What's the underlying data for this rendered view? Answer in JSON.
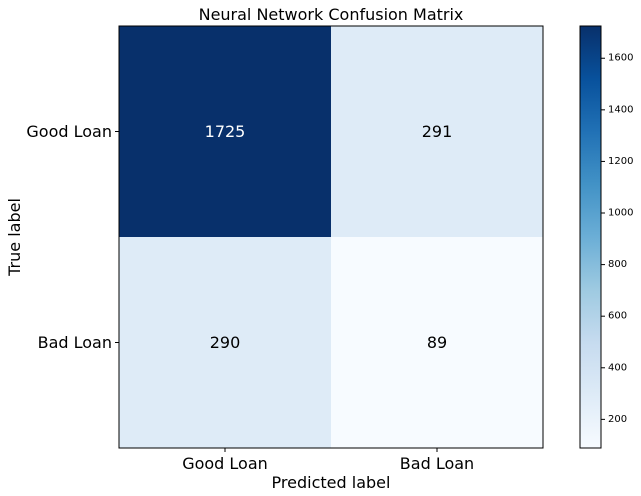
{
  "chart_data": {
    "type": "heatmap",
    "title": "Neural Network Confusion Matrix",
    "xlabel": "Predicted label",
    "ylabel": "True label",
    "x_categories": [
      "Good Loan",
      "Bad Loan"
    ],
    "y_categories": [
      "Good Loan",
      "Bad Loan"
    ],
    "values": [
      [
        1725,
        291
      ],
      [
        290,
        89
      ]
    ],
    "colormap": "Blues",
    "color_range": [
      89,
      1725
    ],
    "colorbar_ticks": [
      200,
      400,
      600,
      800,
      1000,
      1200,
      1400,
      1600
    ],
    "grid": false
  },
  "colors": {
    "low": "#f7fbff",
    "high": "#08306b",
    "dark_text": "#000000",
    "light_text": "#ffffff"
  }
}
